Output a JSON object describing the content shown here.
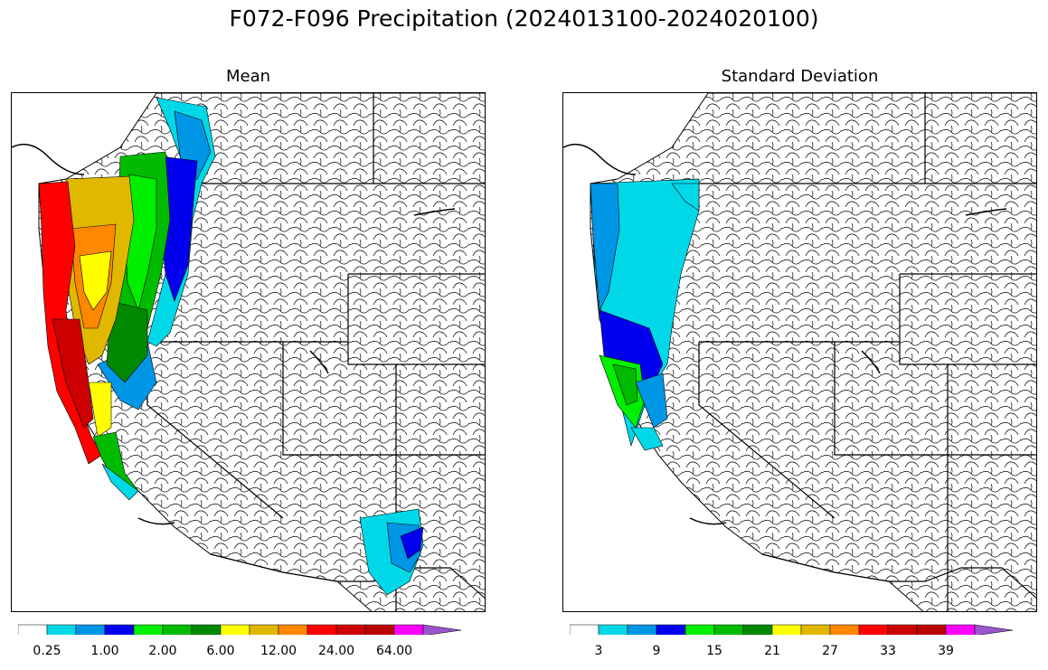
{
  "figure": {
    "title": "F072-F096 Precipitation (2024013100-2024020100)"
  },
  "panels": [
    {
      "title": "Mean",
      "colorbar": {
        "colors": [
          "#ffffff",
          "#00d8e8",
          "#0096e6",
          "#0000ee",
          "#00ee00",
          "#00bb00",
          "#008800",
          "#ffff00",
          "#e0b800",
          "#ff8800",
          "#ff0000",
          "#cc0000",
          "#bb0000",
          "#ff00ff",
          "#9955cc"
        ],
        "tick_labels": [
          "0.25",
          "1.00",
          "2.00",
          "6.00",
          "12.00",
          "24.00",
          "64.00"
        ]
      }
    },
    {
      "title": "Standard Deviation",
      "colorbar": {
        "colors": [
          "#ffffff",
          "#00d8e8",
          "#0096e6",
          "#0000ee",
          "#00ee00",
          "#00bb00",
          "#008800",
          "#ffff00",
          "#e0b800",
          "#ff8800",
          "#ff0000",
          "#cc0000",
          "#bb0000",
          "#ff00ff",
          "#9955cc"
        ],
        "tick_labels": [
          "3",
          "9",
          "15",
          "21",
          "27",
          "33",
          "39"
        ]
      }
    }
  ]
}
